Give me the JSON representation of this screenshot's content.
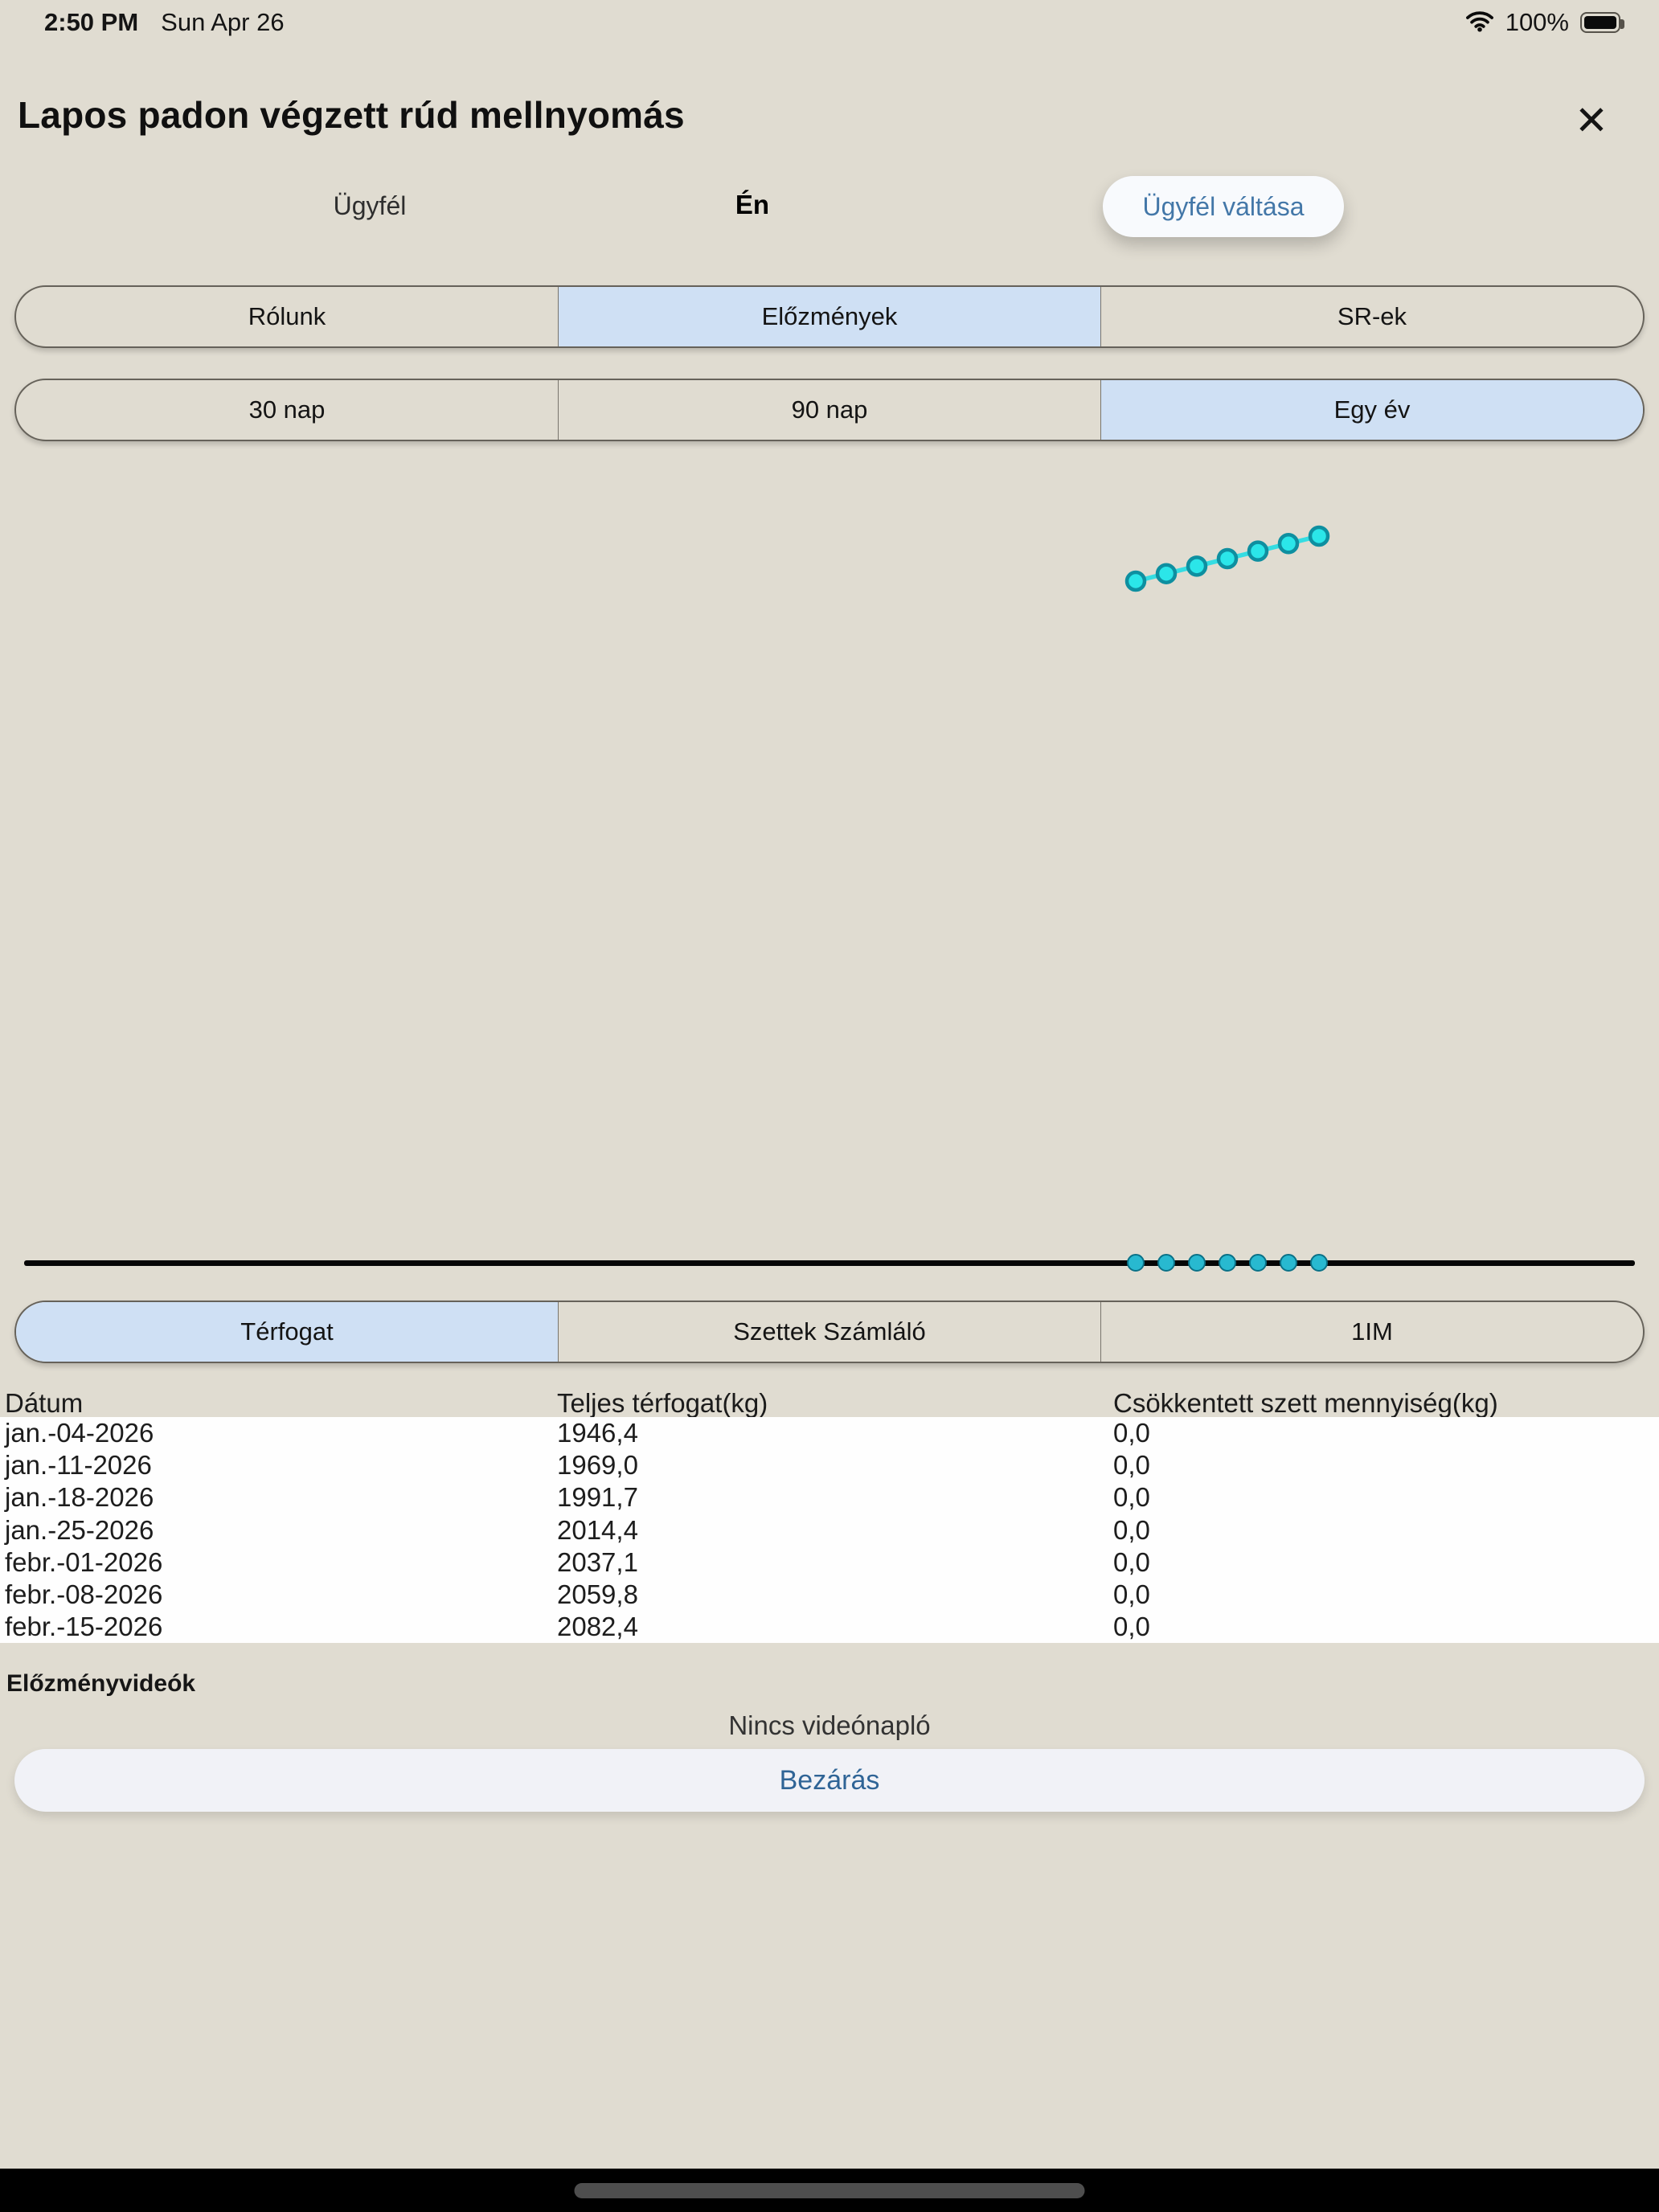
{
  "status_bar": {
    "time": "2:50 PM",
    "date": "Sun Apr 26",
    "battery_percent": "100%"
  },
  "header": {
    "title": "Lapos padon végzett rúd mellnyomás",
    "close_glyph": "✕"
  },
  "client_row": {
    "client_label": "Ügyfél",
    "me_label": "Én",
    "switch_button_label": "Ügyfél váltása"
  },
  "segments": {
    "main": [
      {
        "label": "Rólunk",
        "selected": false
      },
      {
        "label": "Előzmények",
        "selected": true
      },
      {
        "label": "SR-ek",
        "selected": false
      }
    ],
    "range": [
      {
        "label": "30 nap",
        "selected": false
      },
      {
        "label": "90 nap",
        "selected": false
      },
      {
        "label": "Egy év",
        "selected": true
      }
    ],
    "metric": [
      {
        "label": "Térfogat",
        "selected": true
      },
      {
        "label": "Szettek Számláló",
        "selected": false
      },
      {
        "label": "1IM",
        "selected": false
      }
    ]
  },
  "chart_data": {
    "type": "line",
    "x": [
      "jan.-04-2026",
      "jan.-11-2026",
      "jan.-18-2026",
      "jan.-25-2026",
      "febr.-01-2026",
      "febr.-08-2026",
      "febr.-15-2026"
    ],
    "series": [
      {
        "name": "Teljes térfogat(kg)",
        "values": [
          1946.4,
          1969.0,
          1991.7,
          2014.4,
          2037.1,
          2059.8,
          2082.4
        ]
      }
    ],
    "title": "",
    "xlabel": "",
    "ylabel": "",
    "grid": false,
    "legend": false,
    "marker_fill": "#2BE6E9",
    "marker_stroke": "#0E8FA0",
    "line_color": "#35DDE2"
  },
  "table": {
    "columns": [
      "Dátum",
      "Teljes térfogat(kg)",
      "Csökkentett szett mennyiség(kg)"
    ],
    "rows": [
      [
        "jan.-04-2026",
        "1946,4",
        "0,0"
      ],
      [
        "jan.-11-2026",
        "1969,0",
        "0,0"
      ],
      [
        "jan.-18-2026",
        "1991,7",
        "0,0"
      ],
      [
        "jan.-25-2026",
        "2014,4",
        "0,0"
      ],
      [
        "febr.-01-2026",
        "2037,1",
        "0,0"
      ],
      [
        "febr.-08-2026",
        "2059,8",
        "0,0"
      ],
      [
        "febr.-15-2026",
        "2082,4",
        "0,0"
      ]
    ]
  },
  "footer": {
    "videos_title": "Előzményvideók",
    "empty_state": "Nincs videónapló",
    "close_button_label": "Bezárás"
  },
  "colors": {
    "background": "#E0DCD1",
    "selected_tab_bg": "#CFE0F4",
    "link_blue": "#3A6B9E",
    "timeline_dot_fill": "#28B9D0",
    "timeline_dot_stroke": "#0A7187"
  }
}
